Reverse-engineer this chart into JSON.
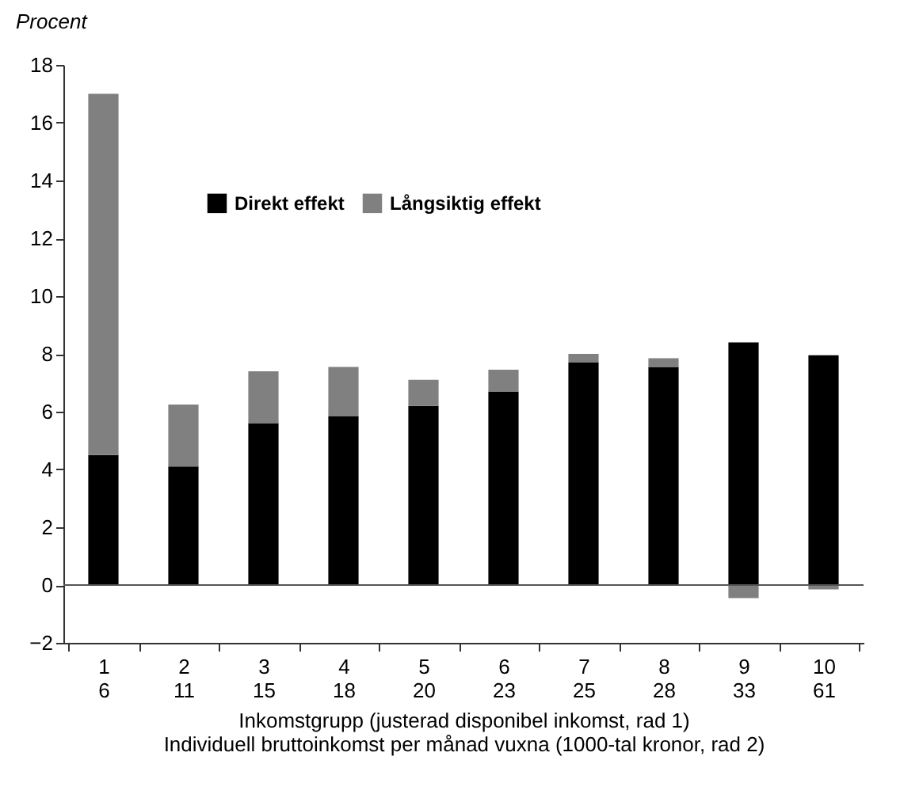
{
  "chart_data": {
    "type": "bar",
    "stacked": true,
    "ylabel": "Procent",
    "xlabel": "Inkomstgrupp (justerad disponibel inkomst, rad 1)\nIndividuell bruttoinkomst per månad vuxna (1000-tal kronor, rad 2)",
    "categories": [
      "1\n6",
      "2\n11",
      "3\n15",
      "4\n18",
      "5\n20",
      "6\n23",
      "7\n25",
      "8\n28",
      "9\n33",
      "10\n61"
    ],
    "series": [
      {
        "name": "Direkt effekt",
        "color": "#000000",
        "values": [
          4.5,
          4.1,
          5.6,
          5.85,
          6.2,
          6.7,
          7.7,
          7.55,
          8.4,
          7.95
        ]
      },
      {
        "name": "Långsiktig effekt",
        "color": "#808080",
        "values": [
          12.5,
          2.15,
          1.8,
          1.7,
          0.9,
          0.75,
          0.3,
          0.3,
          -0.45,
          -0.15
        ]
      }
    ],
    "ylim": [
      -2,
      18
    ],
    "yticks": [
      -2,
      0,
      2,
      4,
      6,
      8,
      10,
      12,
      14,
      16,
      18
    ],
    "grid": false,
    "legend": "top",
    "ref_lines": [
      {
        "axis": "y",
        "value": 0
      }
    ]
  }
}
